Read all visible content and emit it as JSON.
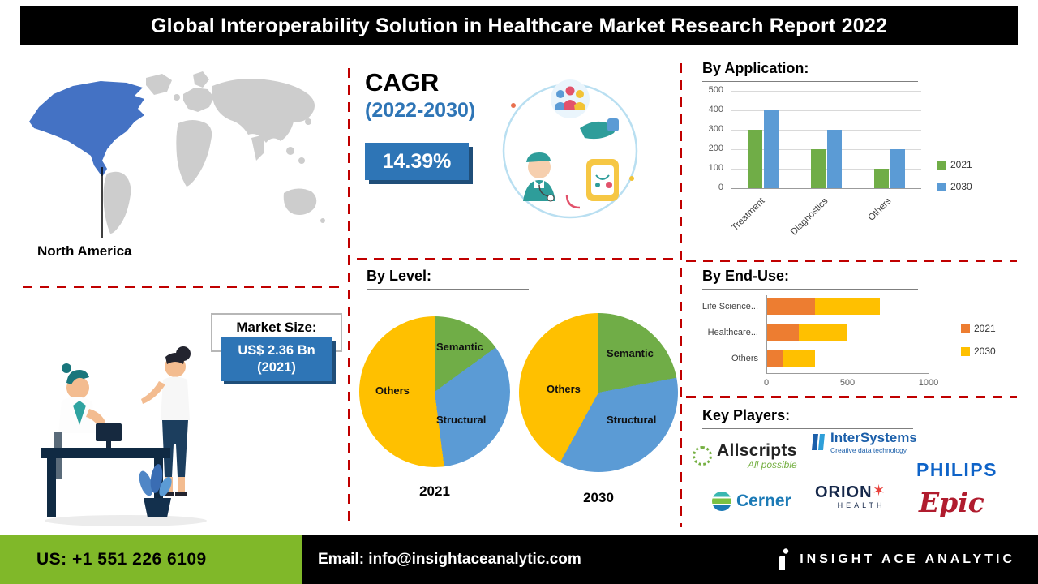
{
  "title": "Global Interoperability Solution in Healthcare Market Research Report 2022",
  "map": {
    "region": "North America"
  },
  "market_size": {
    "label": "Market Size:",
    "value": "US$ 2.36 Bn",
    "year": "(2021)"
  },
  "cagr": {
    "label": "CAGR",
    "period": "(2022-2030)",
    "value": "14.39%"
  },
  "section_titles": {
    "application": "By Application:",
    "level": "By Level:",
    "end_use": "By  End-Use:",
    "key_players": "Key Players:"
  },
  "key_players": {
    "allscripts": "Allscripts",
    "allscripts_tagline": "All possible",
    "intersystems": "InterSystems",
    "intersystems_tagline": "Creative data technology",
    "philips": "PHILIPS",
    "cerner": "Cerner",
    "orion": "ORION",
    "orion_sub": "HEALTH",
    "epic": "Epic"
  },
  "footer": {
    "phone": "US: +1 551 226 6109",
    "email": "Email: info@insightaceanalytic.com",
    "brand": "INSIGHT ACE ANALYTIC"
  },
  "colors": {
    "accent_blue": "#2e75b6",
    "map_blue": "#4472c4",
    "series_green": "#70ad47",
    "series_blue": "#5b9bd5",
    "series_yellow": "#ffc000",
    "series_orange": "#ed7d31",
    "dash_red": "#c00000",
    "footer_green": "#80b829"
  },
  "chart_data": [
    {
      "id": "by_application",
      "type": "bar",
      "title": "By Application:",
      "categories": [
        "Treatment",
        "Diagnostics",
        "Others"
      ],
      "series": [
        {
          "name": "2021",
          "color": "#70ad47",
          "values": [
            300,
            200,
            100
          ]
        },
        {
          "name": "2030",
          "color": "#5b9bd5",
          "values": [
            400,
            300,
            200
          ]
        }
      ],
      "ylim": [
        0,
        500
      ],
      "yticks": [
        0,
        100,
        200,
        300,
        400,
        500
      ],
      "grid": true,
      "legend_position": "right"
    },
    {
      "id": "pie_2021",
      "type": "pie",
      "title": "2021",
      "labels": [
        "Semantic",
        "Structural",
        "Others"
      ],
      "values": [
        15,
        33,
        52
      ],
      "colors": [
        "#70ad47",
        "#5b9bd5",
        "#ffc000"
      ]
    },
    {
      "id": "pie_2030",
      "type": "pie",
      "title": "2030",
      "labels": [
        "Semantic",
        "Structural",
        "Others"
      ],
      "values": [
        22,
        36,
        42
      ],
      "colors": [
        "#70ad47",
        "#5b9bd5",
        "#ffc000"
      ]
    },
    {
      "id": "by_end_use",
      "type": "bar",
      "orientation": "horizontal",
      "stacked": true,
      "title": "By  End-Use:",
      "categories": [
        "Life Science...",
        "Healthcare...",
        "Others"
      ],
      "series": [
        {
          "name": "2021",
          "color": "#ed7d31",
          "values": [
            300,
            200,
            100
          ]
        },
        {
          "name": "2030",
          "color": "#ffc000",
          "values": [
            400,
            300,
            200
          ]
        }
      ],
      "xlim": [
        0,
        1000
      ],
      "xticks": [
        0,
        500,
        1000
      ],
      "legend_position": "right"
    }
  ]
}
